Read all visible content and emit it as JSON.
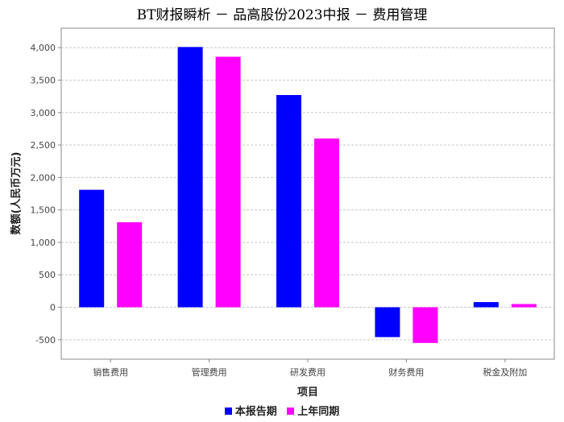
{
  "chart_data": {
    "type": "bar",
    "title": "BT财报瞬析 － 品高股份2023中报 － 费用管理",
    "xlabel": "项目",
    "ylabel": "数额(人民币万元)",
    "categories": [
      "销售费用",
      "管理费用",
      "研发费用",
      "财务费用",
      "税金及附加"
    ],
    "series": [
      {
        "name": "本报告期",
        "color": "#0000ff",
        "values": [
          1810,
          4010,
          3270,
          -460,
          80
        ]
      },
      {
        "name": "上年同期",
        "color": "#ff00ff",
        "values": [
          1310,
          3860,
          2600,
          -550,
          50
        ]
      }
    ],
    "ylim": [
      -800,
      4300
    ],
    "yticks": [
      -500,
      0,
      500,
      1000,
      1500,
      2000,
      2500,
      3000,
      3500,
      4000
    ],
    "ytick_labels": [
      "-500",
      "0",
      "500",
      "1,000",
      "1,500",
      "2,000",
      "2,500",
      "3,000",
      "3,500",
      "4,000"
    ],
    "grid": true,
    "legend_position": "bottom"
  }
}
